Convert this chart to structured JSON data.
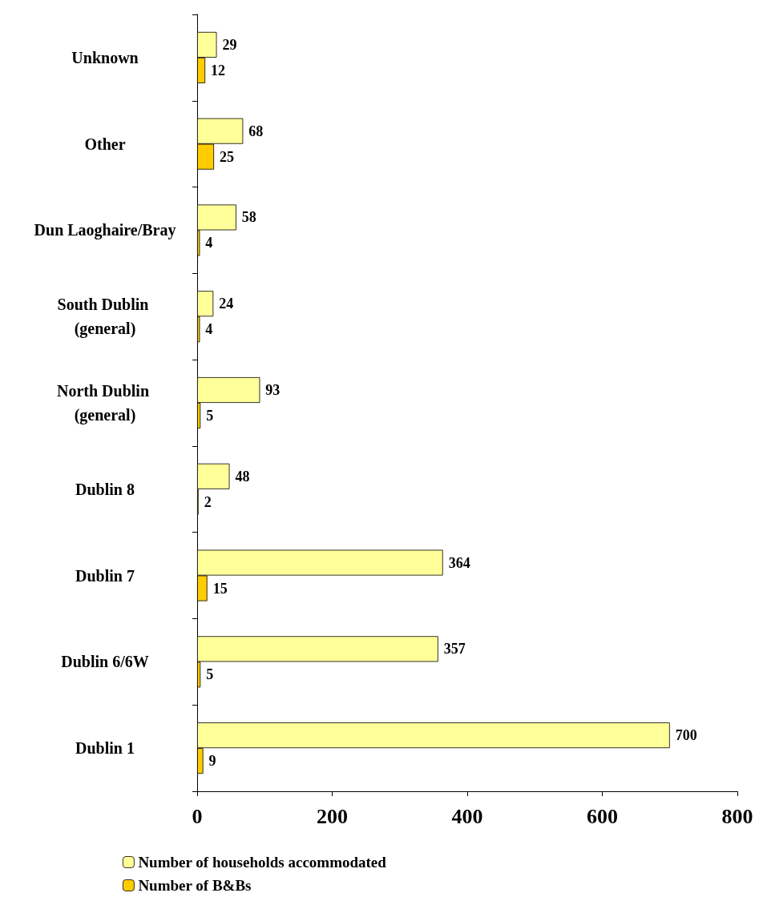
{
  "chart_data": {
    "type": "bar",
    "orientation": "horizontal",
    "categories": [
      "Unknown",
      "Other",
      "Dun Laoghaire/Bray",
      "South Dublin (general)",
      "North Dublin (general)",
      "Dublin 8",
      "Dublin 7",
      "Dublin 6/6W",
      "Dublin 1"
    ],
    "series": [
      {
        "name": "Number of households accommodated",
        "color": "#ffff99",
        "values": [
          29,
          68,
          58,
          24,
          93,
          48,
          364,
          357,
          700
        ]
      },
      {
        "name": "Number of B&Bs",
        "color": "#ffcc00",
        "values": [
          12,
          25,
          4,
          4,
          5,
          2,
          15,
          5,
          9
        ]
      }
    ],
    "xlim": [
      0,
      800
    ],
    "xticks": [
      0,
      200,
      400,
      600,
      800
    ],
    "grid": false,
    "legend": "bottom left",
    "data_labels": true
  }
}
